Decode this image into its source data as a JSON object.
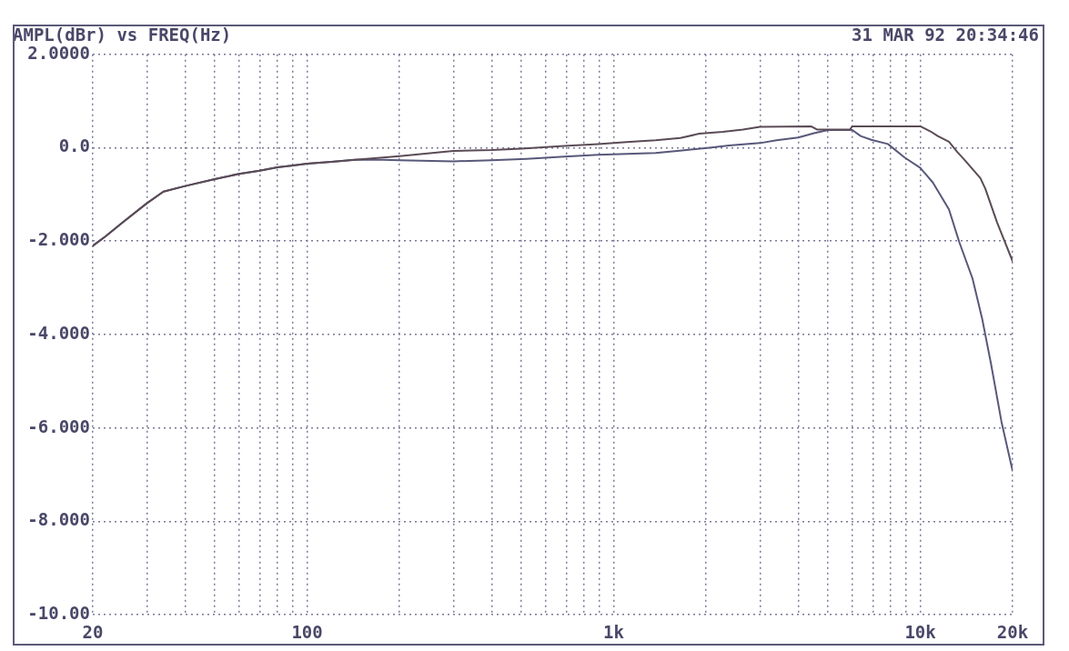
{
  "chart_data": {
    "type": "line",
    "title": "AMPL(dBr) vs FREQ(Hz)",
    "annotations": [
      "31 MAR 92 20:34:46"
    ],
    "log": "x",
    "grid": true,
    "xlim": [
      20,
      20000
    ],
    "xticks": [
      {
        "value": 20,
        "label": "20"
      },
      {
        "value": 30,
        "label": null
      },
      {
        "value": 40,
        "label": null
      },
      {
        "value": 50,
        "label": null
      },
      {
        "value": 60,
        "label": null
      },
      {
        "value": 70,
        "label": null
      },
      {
        "value": 80,
        "label": null
      },
      {
        "value": 90,
        "label": null
      },
      {
        "value": 100,
        "label": "100"
      },
      {
        "value": 200,
        "label": null
      },
      {
        "value": 300,
        "label": null
      },
      {
        "value": 400,
        "label": null
      },
      {
        "value": 500,
        "label": null
      },
      {
        "value": 600,
        "label": null
      },
      {
        "value": 700,
        "label": null
      },
      {
        "value": 800,
        "label": null
      },
      {
        "value": 900,
        "label": null
      },
      {
        "value": 1000,
        "label": "1k"
      },
      {
        "value": 2000,
        "label": null
      },
      {
        "value": 3000,
        "label": null
      },
      {
        "value": 4000,
        "label": null
      },
      {
        "value": 5000,
        "label": null
      },
      {
        "value": 6000,
        "label": null
      },
      {
        "value": 7000,
        "label": null
      },
      {
        "value": 8000,
        "label": null
      },
      {
        "value": 9000,
        "label": null
      },
      {
        "value": 10000,
        "label": "10k"
      },
      {
        "value": 20000,
        "label": "20k"
      }
    ],
    "ylim": [
      -10,
      2
    ],
    "yticks": [
      {
        "value": 2,
        "label": "2.0000"
      },
      {
        "value": 0,
        "label": "0.0"
      },
      {
        "value": -2,
        "label": "-2.000"
      },
      {
        "value": -4,
        "label": "-4.000"
      },
      {
        "value": -6,
        "label": "-6.000"
      },
      {
        "value": -8,
        "label": "-8.000"
      },
      {
        "value": -10,
        "label": "-10.00"
      }
    ],
    "series": [
      {
        "color": "#5b4b56",
        "x": [
          20,
          22,
          25,
          30,
          34,
          40,
          50,
          60,
          70,
          80,
          90,
          100,
          120,
          143,
          177,
          200,
          300,
          400,
          500,
          690,
          890,
          1100,
          1370,
          1650,
          1900,
          2270,
          2640,
          3000,
          4400,
          4600,
          5900,
          6000,
          10000,
          10800,
          11400,
          12400,
          13200,
          13900,
          15700,
          16300,
          17800,
          20000
        ],
        "values": [
          -2.1,
          -1.9,
          -1.6,
          -1.19,
          -0.94,
          -0.82,
          -0.67,
          -0.56,
          -0.49,
          -0.42,
          -0.38,
          -0.34,
          -0.3,
          -0.26,
          -0.21,
          -0.18,
          -0.07,
          -0.05,
          -0.02,
          0.04,
          0.08,
          0.12,
          0.16,
          0.21,
          0.3,
          0.34,
          0.39,
          0.45,
          0.46,
          0.39,
          0.39,
          0.46,
          0.46,
          0.35,
          0.25,
          0.13,
          -0.09,
          -0.25,
          -0.65,
          -0.88,
          -1.6,
          -2.43
        ]
      },
      {
        "color": "#58587a",
        "x": [
          20,
          22,
          25,
          30,
          34,
          40,
          50,
          60,
          70,
          80,
          90,
          100,
          120,
          143,
          177,
          200,
          300,
          400,
          519,
          690,
          890,
          1370,
          1670,
          2050,
          2380,
          3000,
          3400,
          4000,
          4500,
          5000,
          6000,
          6390,
          6920,
          7840,
          8890,
          10000,
          11000,
          12400,
          13400,
          14800,
          15900,
          17000,
          18400,
          20000
        ],
        "values": [
          -2.1,
          -1.9,
          -1.6,
          -1.19,
          -0.94,
          -0.82,
          -0.67,
          -0.56,
          -0.49,
          -0.42,
          -0.38,
          -0.34,
          -0.3,
          -0.26,
          -0.26,
          -0.27,
          -0.29,
          -0.27,
          -0.24,
          -0.19,
          -0.15,
          -0.11,
          -0.06,
          0.0,
          0.05,
          0.1,
          0.16,
          0.22,
          0.31,
          0.38,
          0.38,
          0.25,
          0.17,
          0.08,
          -0.21,
          -0.43,
          -0.75,
          -1.32,
          -2.02,
          -2.8,
          -3.65,
          -4.62,
          -5.87,
          -6.92
        ]
      }
    ]
  }
}
